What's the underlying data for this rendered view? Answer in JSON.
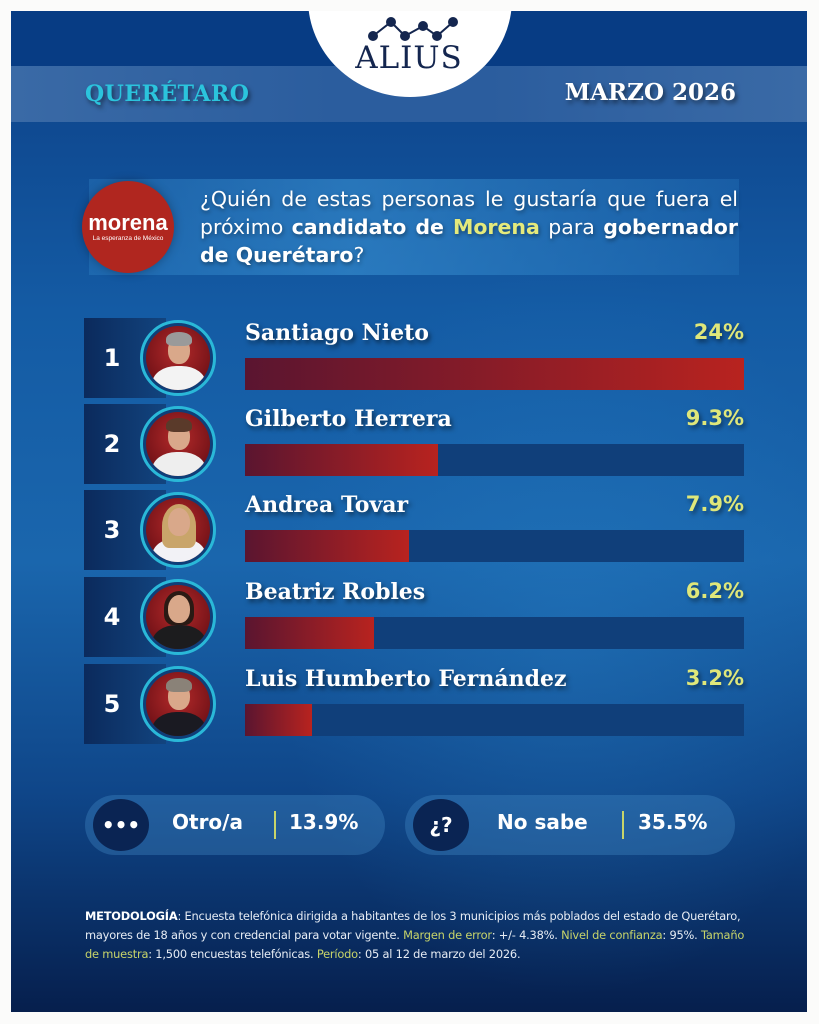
{
  "brand": {
    "name": "ALIUS",
    "icon": "line-chart-dots-icon"
  },
  "header": {
    "state": "QUERÉTARO",
    "date": "MARZO 2026"
  },
  "party": {
    "name": "morena",
    "tagline": "La esperanza de México",
    "color": "#b0261f"
  },
  "question": {
    "part1": "¿Quién de estas personas le gustaría que fuera el próximo ",
    "bold1": "candidato de ",
    "highlight": "Morena",
    "part2": " para ",
    "bold2": "gobernador de Querétaro",
    "part3": "?"
  },
  "candidates": [
    {
      "rank": "1",
      "name": "Santiago Nieto",
      "pct_label": "24%",
      "value": 24,
      "photo": "avatar-santiago-nieto"
    },
    {
      "rank": "2",
      "name": "Gilberto Herrera",
      "pct_label": "9.3%",
      "value": 9.3,
      "photo": "avatar-gilberto-herrera"
    },
    {
      "rank": "3",
      "name": "Andrea Tovar",
      "pct_label": "7.9%",
      "value": 7.9,
      "photo": "avatar-andrea-tovar"
    },
    {
      "rank": "4",
      "name": "Beatriz Robles",
      "pct_label": "6.2%",
      "value": 6.2,
      "photo": "avatar-beatriz-robles"
    },
    {
      "rank": "5",
      "name": "Luis Humberto Fernández",
      "pct_label": "3.2%",
      "value": 3.2,
      "photo": "avatar-luis-humberto-fernandez"
    }
  ],
  "others": [
    {
      "icon": "•••",
      "icon_name": "ellipsis-icon",
      "label": "Otro/a",
      "value": "13.9%"
    },
    {
      "icon": "¿?",
      "icon_name": "question-icon",
      "label": "No sabe",
      "value": "35.5%"
    }
  ],
  "methodology": {
    "title": "METODOLOGÍA",
    "text1": ": Encuesta telefónica dirigida a habitantes de los 3 municipios más poblados del estado de Querétaro, mayores de 18 años y con credencial para votar vigente. ",
    "k1": "Margen de error",
    "v1": ": +/- 4.38%. ",
    "k2": "Nivel de confianza",
    "v2": ": 95%. ",
    "k3": "Tamaño de muestra",
    "v3": ": 1,500 encuestas telefónicas. ",
    "k4": "Período",
    "v4": ": 05 al 12 de marzo del 2026."
  },
  "colors": {
    "bar_fill_start": "#5a1530",
    "bar_fill_end": "#b8231f",
    "bar_track": "#103f7a",
    "pct_text": "#dfe77a",
    "state_text": "#2bc4dd",
    "highlight": "#e4ea7c"
  },
  "chart_data": {
    "type": "bar",
    "orientation": "horizontal",
    "title": "¿Quién de estas personas le gustaría que fuera el próximo candidato de Morena para gobernador de Querétaro?",
    "subtitle": "QUERÉTARO — MARZO 2026",
    "categories": [
      "Santiago Nieto",
      "Gilberto Herrera",
      "Andrea Tovar",
      "Beatriz Robles",
      "Luis Humberto Fernández"
    ],
    "values": [
      24,
      9.3,
      7.9,
      6.2,
      3.2
    ],
    "value_labels": [
      "24%",
      "9.3%",
      "7.9%",
      "6.2%",
      "3.2%"
    ],
    "extra": [
      {
        "label": "Otro/a",
        "value": 13.9
      },
      {
        "label": "No sabe",
        "value": 35.5
      }
    ],
    "unit": "%",
    "xlim": [
      0,
      24
    ],
    "grid": false,
    "legend": "none"
  }
}
